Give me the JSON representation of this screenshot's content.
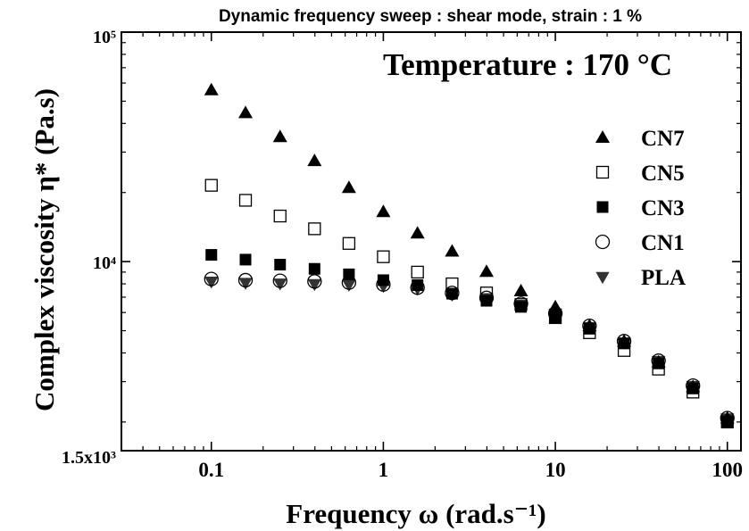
{
  "chart_data": {
    "type": "scatter",
    "title": "Dynamic frequency sweep : shear mode, strain : 1 %",
    "annotation": "Temperature : 170 °C",
    "xlabel": "Frequency ω (rad.s⁻¹)",
    "ylabel": "Complex viscosity η* (Pa.s)",
    "x_scale": "log",
    "y_scale": "log",
    "xlim": [
      0.03,
      120
    ],
    "ylim": [
      1500,
      100000
    ],
    "x_ticks": [
      {
        "value": 0.1,
        "label": "0.1"
      },
      {
        "value": 1,
        "label": "1"
      },
      {
        "value": 10,
        "label": "10"
      },
      {
        "value": 100,
        "label": "100"
      }
    ],
    "y_ticks": [
      {
        "value": 1500,
        "label": "1.5x10³"
      },
      {
        "value": 10000,
        "label": "10⁴"
      },
      {
        "value": 100000,
        "label": "10⁵"
      }
    ],
    "grid": false,
    "legend_position": "right",
    "x": [
      0.1,
      0.158,
      0.251,
      0.398,
      0.631,
      1,
      1.58,
      2.51,
      3.98,
      6.31,
      10,
      15.8,
      25.1,
      39.8,
      63.1,
      100
    ],
    "series": [
      {
        "name": "CN7",
        "marker": "triangle-up-filled",
        "values": [
          56000,
          44500,
          35000,
          27500,
          21000,
          16500,
          13300,
          11100,
          9050,
          7450,
          6350,
          5250,
          4500,
          3650,
          2850,
          2080
        ]
      },
      {
        "name": "CN5",
        "marker": "square-open",
        "values": [
          21500,
          18500,
          15800,
          13900,
          12000,
          10500,
          9000,
          8000,
          7300,
          6500,
          5700,
          4900,
          4100,
          3400,
          2700,
          2000
        ]
      },
      {
        "name": "CN3",
        "marker": "square-filled",
        "values": [
          10700,
          10200,
          9700,
          9300,
          8800,
          8300,
          7900,
          7250,
          6750,
          6350,
          5700,
          5100,
          4400,
          3600,
          2800,
          2000
        ]
      },
      {
        "name": "CN1",
        "marker": "circle-open",
        "values": [
          8400,
          8300,
          8250,
          8200,
          8100,
          7950,
          7700,
          7300,
          6950,
          6550,
          5950,
          5250,
          4500,
          3700,
          2880,
          2080
        ]
      },
      {
        "name": "PLA",
        "marker": "triangle-down-filled",
        "values": [
          8200,
          8100,
          8050,
          8000,
          7950,
          7850,
          7650,
          7200,
          6950,
          6500,
          5950,
          5200,
          4450,
          3700,
          2880,
          2080
        ]
      }
    ]
  }
}
